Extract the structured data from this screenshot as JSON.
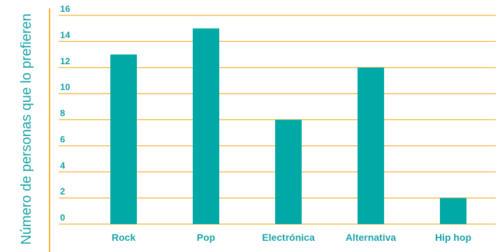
{
  "chart_data": {
    "type": "bar",
    "title": "",
    "xlabel": "",
    "ylabel": "Número de personas que lo prefieren",
    "categories": [
      "Rock",
      "Pop",
      "Electrónica",
      "Alternativa",
      "Hip hop"
    ],
    "values": [
      13,
      15,
      8,
      12,
      2
    ],
    "ylim": [
      0,
      16
    ],
    "yticks": [
      "0",
      "2",
      "4",
      "6",
      "8",
      "10",
      "12",
      "14",
      "16"
    ],
    "grid": true,
    "legend": "none",
    "colors": {
      "bar": "#00a9a6",
      "grid": "#f4b233",
      "axis": "#f4b233",
      "text": "#1aa3a8"
    }
  }
}
